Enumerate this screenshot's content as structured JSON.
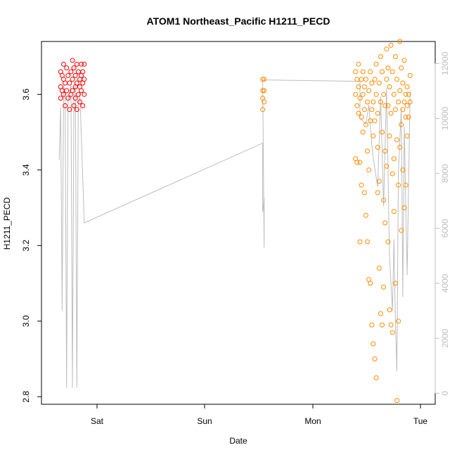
{
  "chart_data": {
    "type": "scatter",
    "title": "ATOM1 Northeast_Pacific H1211_PECD",
    "xlabel": "Date",
    "ylabel": "H1211_PECD",
    "x_ticks": [
      "Sat",
      "Sun",
      "Mon",
      "Tue"
    ],
    "y_ticks": [
      "2.8",
      "3.0",
      "3.2",
      "3.4",
      "3.6"
    ],
    "ylim": [
      2.78,
      3.74
    ],
    "y2_ticks": [
      "0",
      "2000",
      "4000",
      "6000",
      "8000",
      "10000",
      "12000"
    ],
    "y2lim": [
      -400,
      12800
    ],
    "colors": {
      "early_points": "#ff0000",
      "late_points": "#ff8c00",
      "altitude_line": "#bdbdbd",
      "right_axis": "#bdbdbd"
    },
    "series": [
      {
        "color": "early_points",
        "points": [
          [
            -0.37,
            3.66
          ],
          [
            -0.37,
            3.62
          ],
          [
            -0.37,
            3.59
          ],
          [
            -0.36,
            3.65
          ],
          [
            -0.36,
            3.61
          ],
          [
            -0.35,
            3.68
          ],
          [
            -0.35,
            3.64
          ],
          [
            -0.35,
            3.6
          ],
          [
            -0.34,
            3.57
          ],
          [
            -0.34,
            3.63
          ],
          [
            -0.33,
            3.67
          ],
          [
            -0.33,
            3.61
          ],
          [
            -0.32,
            3.65
          ],
          [
            -0.32,
            3.59
          ],
          [
            -0.31,
            3.56
          ],
          [
            -0.31,
            3.63
          ],
          [
            -0.3,
            3.66
          ],
          [
            -0.3,
            3.6
          ],
          [
            -0.29,
            3.69
          ],
          [
            -0.29,
            3.64
          ],
          [
            -0.29,
            3.61
          ],
          [
            -0.28,
            3.57
          ],
          [
            -0.28,
            3.67
          ],
          [
            -0.27,
            3.62
          ],
          [
            -0.27,
            3.65
          ],
          [
            -0.27,
            3.59
          ],
          [
            -0.26,
            3.56
          ],
          [
            -0.26,
            3.68
          ],
          [
            -0.26,
            3.63
          ],
          [
            -0.25,
            3.6
          ],
          [
            -0.25,
            3.66
          ],
          [
            -0.24,
            3.58
          ],
          [
            -0.24,
            3.64
          ],
          [
            -0.24,
            3.62
          ],
          [
            -0.23,
            3.68
          ],
          [
            -0.23,
            3.65
          ],
          [
            -0.23,
            3.61
          ],
          [
            -0.22,
            3.57
          ],
          [
            -0.22,
            3.63
          ],
          [
            -0.22,
            3.66
          ],
          [
            -0.21,
            3.6
          ],
          [
            -0.21,
            3.68
          ],
          [
            -0.21,
            3.64
          ]
        ]
      },
      {
        "color": "late_points",
        "points": [
          [
            1.0,
            3.64
          ],
          [
            1.0,
            3.61
          ],
          [
            1.0,
            3.59
          ],
          [
            1.0,
            3.56
          ],
          [
            1.01,
            3.58
          ],
          [
            1.01,
            3.61
          ],
          [
            1.01,
            3.64
          ],
          [
            1.63,
            3.66
          ],
          [
            1.63,
            3.6
          ],
          [
            1.63,
            3.43
          ],
          [
            1.64,
            3.64
          ],
          [
            1.64,
            3.57
          ],
          [
            1.64,
            3.42
          ],
          [
            1.65,
            3.68
          ],
          [
            1.65,
            3.62
          ],
          [
            1.65,
            3.55
          ],
          [
            1.66,
            3.59
          ],
          [
            1.66,
            3.42
          ],
          [
            1.66,
            3.21
          ],
          [
            1.67,
            3.64
          ],
          [
            1.67,
            3.54
          ],
          [
            1.67,
            3.36
          ],
          [
            1.68,
            3.6
          ],
          [
            1.68,
            3.66
          ],
          [
            1.68,
            3.5
          ],
          [
            1.69,
            3.62
          ],
          [
            1.69,
            3.56
          ],
          [
            1.69,
            3.34
          ],
          [
            1.7,
            3.64
          ],
          [
            1.7,
            3.52
          ],
          [
            1.7,
            3.28
          ],
          [
            1.71,
            3.58
          ],
          [
            1.71,
            3.45
          ],
          [
            1.71,
            3.21
          ],
          [
            1.72,
            3.61
          ],
          [
            1.72,
            3.4
          ],
          [
            1.72,
            3.11
          ],
          [
            1.73,
            3.66
          ],
          [
            1.73,
            3.53
          ],
          [
            1.73,
            3.1
          ],
          [
            1.74,
            3.63
          ],
          [
            1.74,
            3.56
          ],
          [
            1.74,
            2.99
          ],
          [
            1.75,
            3.58
          ],
          [
            1.75,
            3.49
          ],
          [
            1.75,
            2.94
          ],
          [
            1.76,
            3.64
          ],
          [
            1.76,
            3.53
          ],
          [
            1.76,
            2.9
          ],
          [
            1.77,
            3.68
          ],
          [
            1.77,
            3.6
          ],
          [
            1.77,
            2.85
          ],
          [
            1.78,
            3.55
          ],
          [
            1.78,
            3.46
          ],
          [
            1.78,
            3.34
          ],
          [
            1.79,
            3.63
          ],
          [
            1.79,
            3.37
          ],
          [
            1.79,
            3.14
          ],
          [
            1.8,
            3.7
          ],
          [
            1.8,
            3.58
          ],
          [
            1.8,
            3.02
          ],
          [
            1.81,
            3.66
          ],
          [
            1.81,
            3.5
          ],
          [
            1.81,
            2.99
          ],
          [
            1.82,
            3.6
          ],
          [
            1.82,
            3.32
          ],
          [
            1.82,
            3.09
          ],
          [
            1.83,
            3.57
          ],
          [
            1.83,
            3.45
          ],
          [
            1.83,
            3.26
          ],
          [
            1.84,
            3.72
          ],
          [
            1.84,
            3.64
          ],
          [
            1.84,
            3.41
          ],
          [
            1.85,
            3.67
          ],
          [
            1.85,
            3.57
          ],
          [
            1.85,
            3.21
          ],
          [
            1.86,
            3.62
          ],
          [
            1.86,
            3.49
          ],
          [
            1.86,
            3.03
          ],
          [
            1.87,
            3.73
          ],
          [
            1.87,
            3.55
          ],
          [
            1.87,
            2.99
          ],
          [
            1.88,
            3.66
          ],
          [
            1.88,
            3.39
          ],
          [
            1.88,
            2.97
          ],
          [
            1.89,
            3.6
          ],
          [
            1.89,
            3.43
          ],
          [
            1.89,
            3.29
          ],
          [
            1.9,
            3.7
          ],
          [
            1.9,
            3.56
          ],
          [
            1.9,
            3.1
          ],
          [
            1.91,
            3.64
          ],
          [
            1.91,
            3.48
          ],
          [
            1.91,
            2.79
          ],
          [
            1.92,
            3.58
          ],
          [
            1.92,
            3.36
          ],
          [
            1.92,
            3.0
          ],
          [
            1.93,
            3.74
          ],
          [
            1.93,
            3.61
          ],
          [
            1.93,
            3.46
          ],
          [
            1.94,
            3.67
          ],
          [
            1.94,
            3.52
          ],
          [
            1.94,
            3.24
          ],
          [
            1.95,
            3.63
          ],
          [
            1.95,
            3.56
          ],
          [
            1.95,
            3.4
          ],
          [
            1.96,
            3.69
          ],
          [
            1.96,
            3.58
          ],
          [
            1.96,
            3.3
          ],
          [
            1.97,
            3.6
          ],
          [
            1.97,
            3.54
          ],
          [
            1.97,
            3.36
          ],
          [
            1.98,
            3.62
          ],
          [
            1.98,
            3.57
          ],
          [
            1.98,
            3.49
          ],
          [
            1.99,
            3.6
          ],
          [
            1.99,
            3.54
          ],
          [
            2.0,
            3.65
          ],
          [
            2.0,
            3.58
          ]
        ]
      }
    ],
    "altitude_line": [
      [
        -0.38,
        8500
      ],
      [
        -0.37,
        10400
      ],
      [
        -0.36,
        3000
      ],
      [
        -0.35,
        11200
      ],
      [
        -0.34,
        10900
      ],
      [
        -0.33,
        200
      ],
      [
        -0.32,
        10600
      ],
      [
        -0.31,
        11000
      ],
      [
        -0.3,
        11200
      ],
      [
        -0.29,
        200
      ],
      [
        -0.28,
        10700
      ],
      [
        -0.27,
        11300
      ],
      [
        -0.26,
        200
      ],
      [
        -0.25,
        10500
      ],
      [
        -0.24,
        11000
      ],
      [
        -0.21,
        6200
      ],
      [
        1.0,
        9100
      ],
      [
        1.0,
        6600
      ],
      [
        1.01,
        7100
      ],
      [
        1.01,
        5300
      ],
      [
        1.0,
        11400
      ],
      [
        1.66,
        11350
      ],
      [
        1.66,
        10000
      ],
      [
        1.7,
        9800
      ],
      [
        1.72,
        10500
      ],
      [
        1.74,
        9000
      ],
      [
        1.76,
        8200
      ],
      [
        1.78,
        7500
      ],
      [
        1.8,
        10800
      ],
      [
        1.82,
        6800
      ],
      [
        1.84,
        11100
      ],
      [
        1.86,
        5000
      ],
      [
        1.88,
        3000
      ],
      [
        1.89,
        5600
      ],
      [
        1.9,
        2600
      ],
      [
        1.91,
        800
      ],
      [
        1.92,
        8000
      ],
      [
        1.94,
        10400
      ],
      [
        1.95,
        3500
      ],
      [
        1.96,
        9700
      ],
      [
        1.98,
        4300
      ],
      [
        2.0,
        11000
      ]
    ]
  }
}
